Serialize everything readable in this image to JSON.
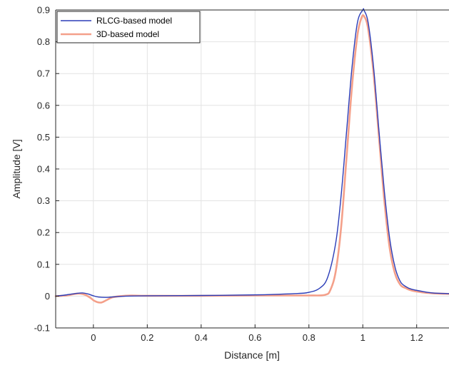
{
  "chart_data": {
    "type": "line",
    "title": "",
    "xlabel": "Distance [m]",
    "ylabel": "Amplitude [V]",
    "xlim": [
      -0.14,
      1.32
    ],
    "ylim": [
      -0.1,
      0.9
    ],
    "grid": true,
    "legend_position": "top-left",
    "x_ticks": [
      0,
      0.2,
      0.4,
      0.6,
      0.8,
      1,
      1.2
    ],
    "x_tick_labels": [
      "0",
      "0.2",
      "0.4",
      "0.6",
      "0.8",
      "1",
      "1.2"
    ],
    "y_ticks": [
      -0.1,
      0,
      0.1,
      0.2,
      0.3,
      0.4,
      0.5,
      0.6,
      0.7,
      0.8,
      0.9
    ],
    "y_tick_labels": [
      "-0.1",
      "0",
      "0.1",
      "0.2",
      "0.3",
      "0.4",
      "0.5",
      "0.6",
      "0.7",
      "0.8",
      "0.9"
    ],
    "series": [
      {
        "name": "RLCG-based model",
        "color": "#2b3db8",
        "x": [
          -0.14,
          -0.1,
          -0.06,
          -0.04,
          -0.02,
          0.0,
          0.02,
          0.05,
          0.08,
          0.12,
          0.2,
          0.4,
          0.6,
          0.75,
          0.8,
          0.84,
          0.87,
          0.9,
          0.92,
          0.94,
          0.96,
          0.98,
          1.0,
          1.005,
          1.02,
          1.04,
          1.06,
          1.08,
          1.1,
          1.12,
          1.14,
          1.16,
          1.18,
          1.22,
          1.26,
          1.32
        ],
        "y": [
          0.0,
          0.004,
          0.009,
          0.01,
          0.007,
          0.001,
          -0.003,
          -0.004,
          -0.002,
          0.0,
          0.001,
          0.002,
          0.004,
          0.008,
          0.012,
          0.025,
          0.06,
          0.17,
          0.32,
          0.52,
          0.72,
          0.86,
          0.9,
          0.898,
          0.86,
          0.72,
          0.52,
          0.33,
          0.18,
          0.09,
          0.045,
          0.03,
          0.022,
          0.015,
          0.01,
          0.008
        ]
      },
      {
        "name": "3D-based model",
        "color": "#f4a08a",
        "x": [
          -0.14,
          -0.1,
          -0.07,
          -0.05,
          -0.03,
          -0.01,
          0.0,
          0.015,
          0.03,
          0.05,
          0.07,
          0.1,
          0.14,
          0.2,
          0.4,
          0.6,
          0.8,
          0.86,
          0.88,
          0.9,
          0.92,
          0.94,
          0.96,
          0.98,
          0.995,
          1.005,
          1.02,
          1.04,
          1.06,
          1.08,
          1.1,
          1.12,
          1.14,
          1.16,
          1.18,
          1.22,
          1.26,
          1.32
        ],
        "y": [
          0.0,
          0.002,
          0.007,
          0.008,
          0.004,
          -0.006,
          -0.013,
          -0.019,
          -0.02,
          -0.012,
          -0.004,
          0.0,
          0.002,
          0.001,
          0.001,
          0.002,
          0.002,
          0.004,
          0.02,
          0.08,
          0.22,
          0.44,
          0.66,
          0.82,
          0.875,
          0.88,
          0.84,
          0.7,
          0.5,
          0.3,
          0.15,
          0.07,
          0.035,
          0.025,
          0.018,
          0.012,
          0.009,
          0.007
        ]
      }
    ]
  }
}
